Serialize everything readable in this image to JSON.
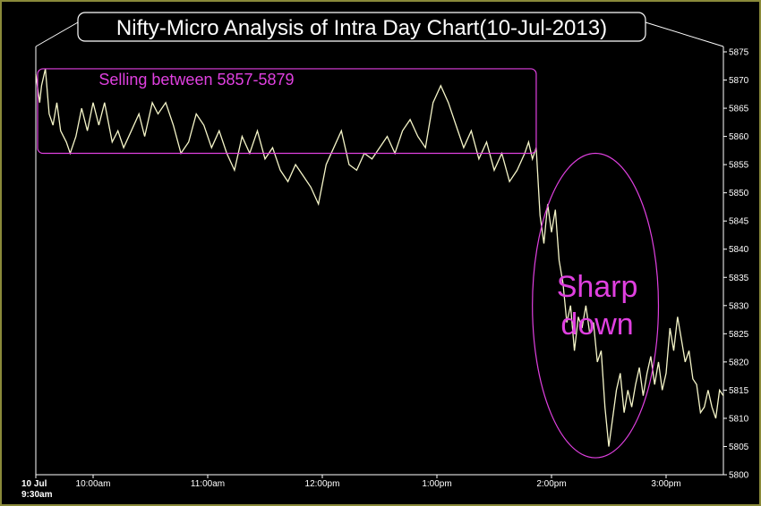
{
  "chart_data": {
    "type": "line",
    "title": "Nifty-Micro Analysis of Intra Day Chart(10-Jul-2013)",
    "xlabel": "",
    "ylabel": "",
    "ylim": [
      5800,
      5875
    ],
    "y_ticks": [
      5800,
      5805,
      5810,
      5815,
      5820,
      5825,
      5830,
      5835,
      5840,
      5845,
      5850,
      5855,
      5860,
      5865,
      5870,
      5875
    ],
    "x_range": [
      "09:30",
      "15:30"
    ],
    "x_ticks": [
      {
        "time": "09:30",
        "label": "10 Jul",
        "label2": "9:30am"
      },
      {
        "time": "10:00",
        "label": "10:00am",
        "label2": ""
      },
      {
        "time": "11:00",
        "label": "11:00am",
        "label2": ""
      },
      {
        "time": "12:00",
        "label": "12:00pm",
        "label2": ""
      },
      {
        "time": "13:00",
        "label": "1:00pm",
        "label2": ""
      },
      {
        "time": "14:00",
        "label": "2:00pm",
        "label2": ""
      },
      {
        "time": "15:00",
        "label": "3:00pm",
        "label2": ""
      }
    ],
    "grid": false,
    "line_color": "#f5f5c8",
    "series": [
      {
        "name": "",
        "points": [
          [
            "09:30",
            5871
          ],
          [
            "09:32",
            5866
          ],
          [
            "09:33",
            5869
          ],
          [
            "09:35",
            5872
          ],
          [
            "09:37",
            5864
          ],
          [
            "09:39",
            5862
          ],
          [
            "09:41",
            5866
          ],
          [
            "09:43",
            5861
          ],
          [
            "09:46",
            5859
          ],
          [
            "09:48",
            5857
          ],
          [
            "09:51",
            5860
          ],
          [
            "09:54",
            5865
          ],
          [
            "09:57",
            5861
          ],
          [
            "10:00",
            5866
          ],
          [
            "10:03",
            5862
          ],
          [
            "10:06",
            5866
          ],
          [
            "10:10",
            5859
          ],
          [
            "10:13",
            5861
          ],
          [
            "10:16",
            5858
          ],
          [
            "10:20",
            5861
          ],
          [
            "10:24",
            5864
          ],
          [
            "10:27",
            5860
          ],
          [
            "10:31",
            5866
          ],
          [
            "10:34",
            5864
          ],
          [
            "10:38",
            5866
          ],
          [
            "10:42",
            5862
          ],
          [
            "10:46",
            5857
          ],
          [
            "10:50",
            5859
          ],
          [
            "10:54",
            5864
          ],
          [
            "10:58",
            5862
          ],
          [
            "11:02",
            5858
          ],
          [
            "11:06",
            5861
          ],
          [
            "11:10",
            5857
          ],
          [
            "11:14",
            5854
          ],
          [
            "11:18",
            5860
          ],
          [
            "11:22",
            5857
          ],
          [
            "11:26",
            5861
          ],
          [
            "11:30",
            5856
          ],
          [
            "11:34",
            5858
          ],
          [
            "11:38",
            5854
          ],
          [
            "11:42",
            5852
          ],
          [
            "11:46",
            5855
          ],
          [
            "11:50",
            5853
          ],
          [
            "11:54",
            5851
          ],
          [
            "11:58",
            5848
          ],
          [
            "12:02",
            5855
          ],
          [
            "12:06",
            5858
          ],
          [
            "12:10",
            5861
          ],
          [
            "12:14",
            5855
          ],
          [
            "12:18",
            5854
          ],
          [
            "12:22",
            5857
          ],
          [
            "12:26",
            5856
          ],
          [
            "12:30",
            5858
          ],
          [
            "12:34",
            5860
          ],
          [
            "12:38",
            5857
          ],
          [
            "12:42",
            5861
          ],
          [
            "12:46",
            5863
          ],
          [
            "12:50",
            5860
          ],
          [
            "12:54",
            5858
          ],
          [
            "12:58",
            5866
          ],
          [
            "13:02",
            5869
          ],
          [
            "13:06",
            5866
          ],
          [
            "13:10",
            5862
          ],
          [
            "13:14",
            5858
          ],
          [
            "13:18",
            5861
          ],
          [
            "13:22",
            5856
          ],
          [
            "13:26",
            5859
          ],
          [
            "13:30",
            5854
          ],
          [
            "13:34",
            5857
          ],
          [
            "13:38",
            5852
          ],
          [
            "13:42",
            5854
          ],
          [
            "13:46",
            5857
          ],
          [
            "13:48",
            5859
          ],
          [
            "13:50",
            5856
          ],
          [
            "13:52",
            5858
          ],
          [
            "13:54",
            5846
          ],
          [
            "13:56",
            5841
          ],
          [
            "13:58",
            5848
          ],
          [
            "14:00",
            5843
          ],
          [
            "14:02",
            5847
          ],
          [
            "14:04",
            5838
          ],
          [
            "14:06",
            5834
          ],
          [
            "14:08",
            5827
          ],
          [
            "14:10",
            5830
          ],
          [
            "14:12",
            5822
          ],
          [
            "14:14",
            5828
          ],
          [
            "14:16",
            5826
          ],
          [
            "14:18",
            5830
          ],
          [
            "14:20",
            5825
          ],
          [
            "14:22",
            5827
          ],
          [
            "14:24",
            5820
          ],
          [
            "14:26",
            5822
          ],
          [
            "14:28",
            5812
          ],
          [
            "14:30",
            5805
          ],
          [
            "14:32",
            5810
          ],
          [
            "14:34",
            5815
          ],
          [
            "14:36",
            5818
          ],
          [
            "14:38",
            5811
          ],
          [
            "14:40",
            5815
          ],
          [
            "14:42",
            5812
          ],
          [
            "14:44",
            5816
          ],
          [
            "14:46",
            5819
          ],
          [
            "14:48",
            5814
          ],
          [
            "14:50",
            5818
          ],
          [
            "14:52",
            5821
          ],
          [
            "14:54",
            5816
          ],
          [
            "14:56",
            5820
          ],
          [
            "14:58",
            5815
          ],
          [
            "15:00",
            5818
          ],
          [
            "15:02",
            5826
          ],
          [
            "15:04",
            5822
          ],
          [
            "15:06",
            5828
          ],
          [
            "15:08",
            5824
          ],
          [
            "15:10",
            5820
          ],
          [
            "15:12",
            5822
          ],
          [
            "15:14",
            5817
          ],
          [
            "15:16",
            5816
          ],
          [
            "15:18",
            5811
          ],
          [
            "15:20",
            5812
          ],
          [
            "15:22",
            5815
          ],
          [
            "15:24",
            5812
          ],
          [
            "15:26",
            5810
          ],
          [
            "15:28",
            5815
          ],
          [
            "15:30",
            5814
          ]
        ]
      }
    ],
    "annotations": [
      {
        "kind": "rect",
        "text": "Selling between 5857-5879",
        "color": "#e040e0",
        "t0": "09:30",
        "t1": "13:52",
        "y0": 5857,
        "y1": 5872
      },
      {
        "kind": "ellipse",
        "text_lines": [
          "Sharp",
          "down"
        ],
        "color": "#e040e0",
        "t0": "13:50",
        "t1": "14:56",
        "y0": 5803,
        "y1": 5857
      }
    ]
  }
}
